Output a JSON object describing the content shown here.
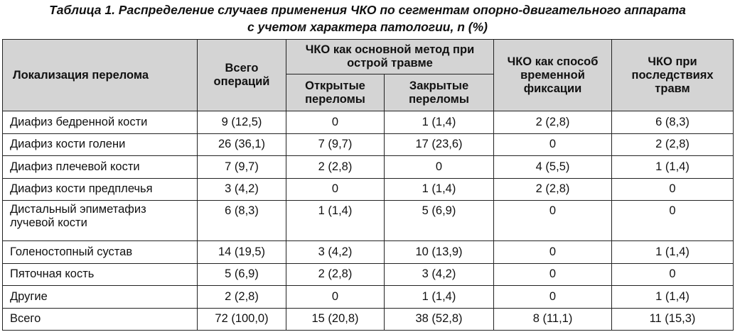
{
  "caption": {
    "line1": "Таблица 1. Распределение случаев применения ЧКО по сегментам опорно-двигательного аппарата",
    "line2": "с учетом характера патологии, n (%)"
  },
  "table": {
    "headers": {
      "localization": "Локализация перелома",
      "total_ops": "Всего операций",
      "primary_method": "ЧКО как основной метод при острой травме",
      "open_fractures": "Открытые переломы",
      "closed_fractures": "Закрытые переломы",
      "temporary_fixation": "ЧКО как способ временной фиксации",
      "consequences": "ЧКО при последствиях травм"
    },
    "rows": [
      {
        "name": "Диафиз бедренной кости",
        "total": "9 (12,5)",
        "open": "0",
        "closed": "1 (1,4)",
        "temporary": "2 (2,8)",
        "consequences": "6 (8,3)"
      },
      {
        "name": "Диафиз кости голени",
        "total": "26 (36,1)",
        "open": "7 (9,7)",
        "closed": "17 (23,6)",
        "temporary": "0",
        "consequences": "2 (2,8)"
      },
      {
        "name": "Диафиз плечевой кости",
        "total": "7 (9,7)",
        "open": "2 (2,8)",
        "closed": "0",
        "temporary": "4 (5,5)",
        "consequences": "1 (1,4)"
      },
      {
        "name": "Диафиз кости предплечья",
        "total": "3 (4,2)",
        "open": "0",
        "closed": "1 (1,4)",
        "temporary": "2 (2,8)",
        "consequences": "0"
      },
      {
        "name": "Дистальный эпиметафиз лучевой кости",
        "total": "6 (8,3)",
        "open": "1 (1,4)",
        "closed": "5 (6,9)",
        "temporary": "0",
        "consequences": "0"
      },
      {
        "name": "Голеностопный сустав",
        "total": "14 (19,5)",
        "open": "3 (4,2)",
        "closed": "10 (13,9)",
        "temporary": "0",
        "consequences": "1 (1,4)"
      },
      {
        "name": "Пяточная кость",
        "total": "5 (6,9)",
        "open": "2 (2,8)",
        "closed": "3 (4,2)",
        "temporary": "0",
        "consequences": "0"
      },
      {
        "name": "Другие",
        "total": "2 (2,8)",
        "open": "0",
        "closed": "1 (1,4)",
        "temporary": "0",
        "consequences": "1 (1,4)"
      },
      {
        "name": "Всего",
        "total": "72 (100,0)",
        "open": "15 (20,8)",
        "closed": "38 (52,8)",
        "temporary": "8 (11,1)",
        "consequences": "11 (15,3)"
      }
    ]
  }
}
